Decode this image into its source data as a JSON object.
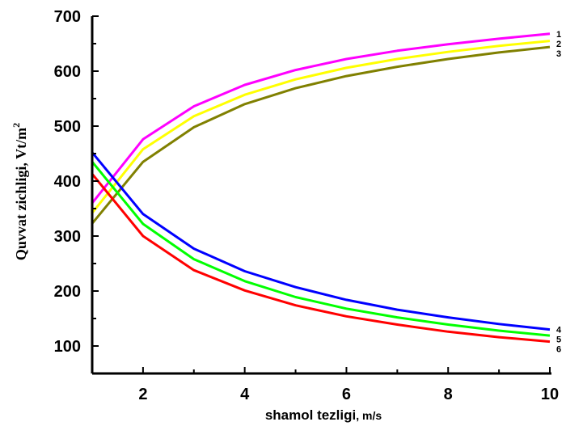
{
  "chart_data": {
    "type": "line",
    "xlabel_main": "shamol tezligi",
    "xlabel_unit": ", m/s",
    "ylabel_main": "Quvvat zichligi, Vt/m",
    "ylabel_sup": "2",
    "xlim": [
      1,
      10
    ],
    "ylim": [
      50,
      700
    ],
    "xticks": [
      2,
      4,
      6,
      8,
      10
    ],
    "yticks": [
      100,
      200,
      300,
      400,
      500,
      600,
      700
    ],
    "grid": false,
    "x": [
      1,
      2,
      3,
      4,
      5,
      6,
      7,
      8,
      9,
      10
    ],
    "series": [
      {
        "name": "1",
        "color": "#ff00ff",
        "values": [
          360,
          476,
          536,
          575,
          602,
          622,
          637,
          649,
          659,
          668
        ]
      },
      {
        "name": "2",
        "color": "#ffff00",
        "values": [
          342,
          458,
          518,
          557,
          585,
          606,
          622,
          635,
          646,
          655
        ]
      },
      {
        "name": "3",
        "color": "#808000",
        "values": [
          323,
          435,
          498,
          540,
          569,
          591,
          608,
          622,
          634,
          644
        ]
      },
      {
        "name": "4",
        "color": "#0000ff",
        "values": [
          452,
          340,
          277,
          236,
          207,
          184,
          166,
          152,
          140,
          130
        ]
      },
      {
        "name": "5",
        "color": "#00ff00",
        "values": [
          435,
          322,
          258,
          218,
          189,
          168,
          152,
          139,
          128,
          119
        ]
      },
      {
        "name": "6",
        "color": "#ff0000",
        "values": [
          413,
          300,
          238,
          201,
          174,
          154,
          139,
          126,
          116,
          108
        ]
      }
    ]
  }
}
